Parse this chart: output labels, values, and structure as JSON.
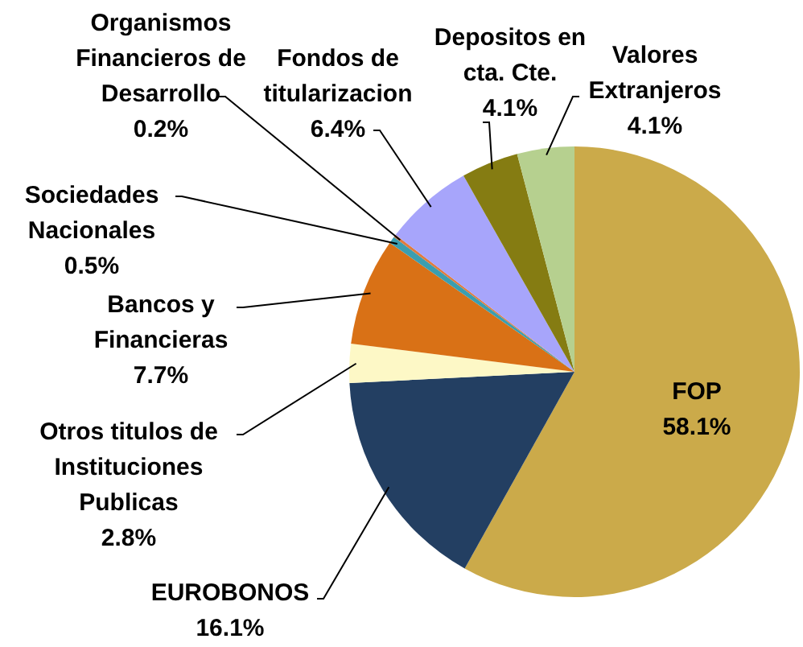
{
  "chart_data": {
    "type": "pie",
    "categories": [
      "FOP",
      "EUROBONOS",
      "Otros titulos de Instituciones Publicas",
      "Bancos y Financieras",
      "Sociedades Nacionales",
      "Organismos Financieros de Desarrollo",
      "Fondos de titularizacion",
      "Depositos en cta. Cte.",
      "Valores Extranjeros"
    ],
    "values": [
      58.1,
      16.1,
      2.8,
      7.7,
      0.5,
      0.2,
      6.4,
      4.1,
      4.1
    ],
    "colors": [
      "#cbaa4a",
      "#233f62",
      "#fdf8c6",
      "#d97116",
      "#3b9eb0",
      "#e07b3c",
      "#a7a5fb",
      "#857c12",
      "#b6d08f"
    ],
    "value_labels": [
      "58.1%",
      "16.1%",
      "2.8%",
      "7.7%",
      "0.5%",
      "0.2%",
      "6.4%",
      "4.1%",
      "4.1%"
    ]
  }
}
